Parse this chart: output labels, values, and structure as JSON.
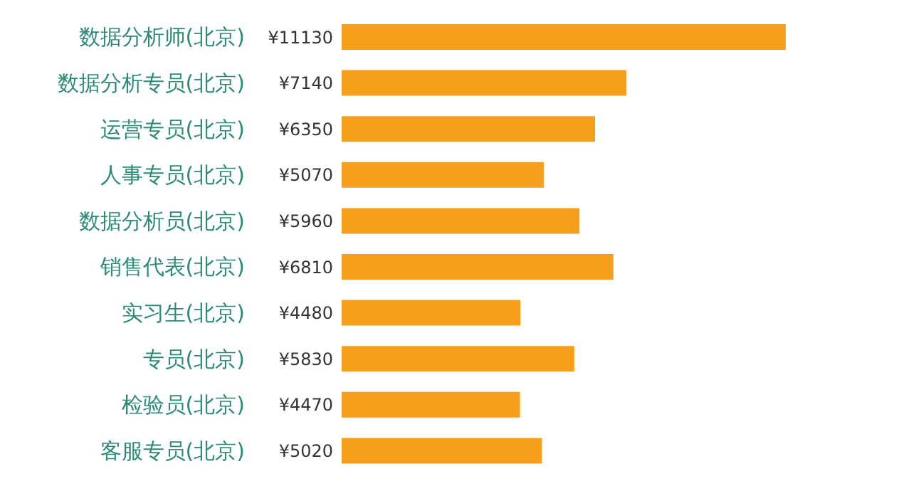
{
  "chart_data": {
    "type": "bar",
    "orientation": "horizontal",
    "categories": [
      "数据分析师(北京)",
      "数据分析专员(北京)",
      "运营专员(北京)",
      "人事专员(北京)",
      "数据分析员(北京)",
      "销售代表(北京)",
      "实习生(北京)",
      "专员(北京)",
      "检验员(北京)",
      "客服专员(北京)"
    ],
    "values": [
      11130,
      7140,
      6350,
      5070,
      5960,
      6810,
      4480,
      5830,
      4470,
      5020
    ],
    "value_labels": [
      "¥11130",
      "¥7140",
      "¥6350",
      "¥5070",
      "¥5960",
      "¥6810",
      "¥4480",
      "¥5830",
      "¥4470",
      "¥5020"
    ],
    "color": "#f59f1c"
  }
}
